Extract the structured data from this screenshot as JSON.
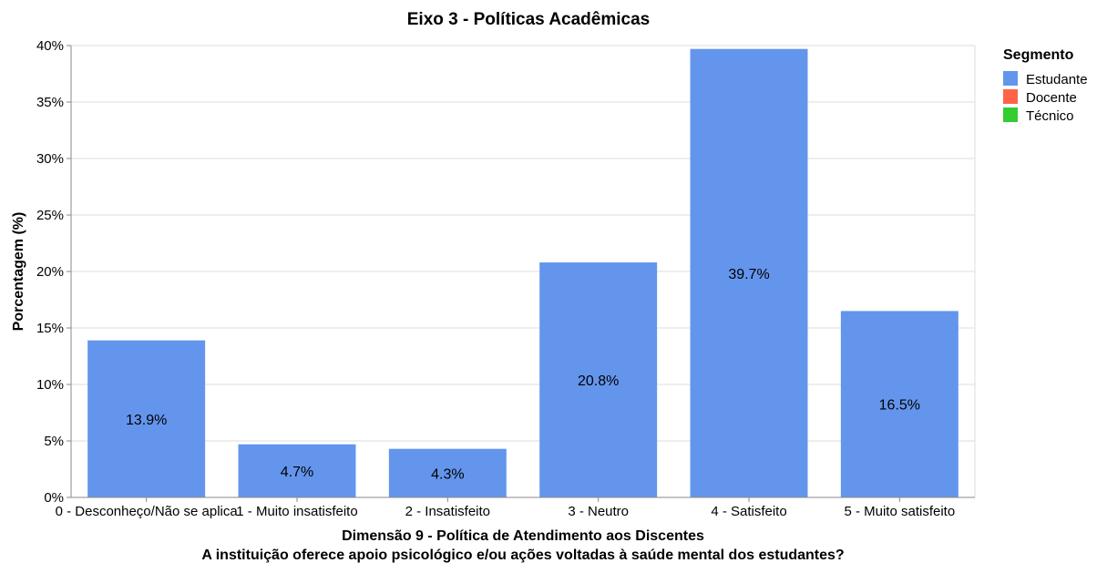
{
  "chart_data": {
    "type": "bar",
    "title": "Eixo 3 - Políticas Acadêmicas",
    "xlabel": "Dimensão 9 - Política de Atendimento aos Discentes",
    "xlabel_line2": "A instituição oferece apoio psicológico e/ou ações voltadas à saúde mental dos estudantes?",
    "ylabel": "Porcentagem (%)",
    "ylim": [
      0,
      40
    ],
    "yticks": [
      "0%",
      "5%",
      "10%",
      "15%",
      "20%",
      "25%",
      "30%",
      "35%",
      "40%"
    ],
    "grid": true,
    "categories": [
      "0 - Desconheço/Não se aplica",
      "1 - Muito insatisfeito",
      "2 - Insatisfeito",
      "3 - Neutro",
      "4 - Satisfeito",
      "5 - Muito satisfeito"
    ],
    "series": [
      {
        "name": "Estudante",
        "color": "#6495ED",
        "values": [
          13.9,
          4.7,
          4.3,
          20.8,
          39.7,
          16.5
        ],
        "labels": [
          "13.9%",
          "4.7%",
          "4.3%",
          "20.8%",
          "39.7%",
          "16.5%"
        ]
      }
    ],
    "legend": {
      "title": "Segmento",
      "position": "right",
      "entries": [
        {
          "name": "Estudante",
          "color": "#6495ED"
        },
        {
          "name": "Docente",
          "color": "#FF6347"
        },
        {
          "name": "Técnico",
          "color": "#32CD32"
        }
      ]
    }
  }
}
